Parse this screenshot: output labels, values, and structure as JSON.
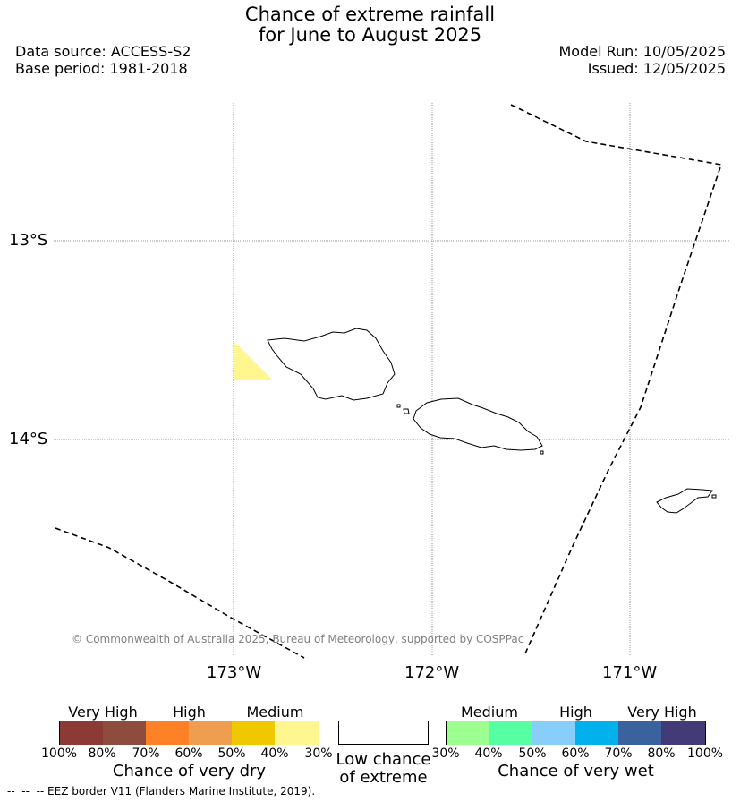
{
  "header": {
    "title_line1": "Chance of extreme rainfall",
    "title_line2": "for June to August 2025",
    "data_source": "Data source: ACCESS-S2",
    "base_period": "Base period: 1981-2018",
    "model_run": "Model Run: 10/05/2025",
    "issued": "Issued: 12/05/2025"
  },
  "map": {
    "lat_labels": [
      "13°S",
      "14°S"
    ],
    "lon_labels": [
      "173°W",
      "172°W",
      "171°W"
    ],
    "copyright": "© Commonwealth of Australia 2025, Bureau of Meteorology, supported by COSPPac",
    "overlay_color": "#fff68f",
    "eez_line_style": "dashed"
  },
  "legend": {
    "dry": {
      "groups": [
        "Very High",
        "High",
        "Medium"
      ],
      "colors": [
        "#8b3a35",
        "#8e4c3e",
        "#fe8126",
        "#ef9e4f",
        "#f0c800",
        "#fff68f"
      ],
      "ticks": [
        "100%",
        "80%",
        "70%",
        "60%",
        "50%",
        "40%",
        "30%"
      ],
      "caption": "Chance of very dry"
    },
    "low": {
      "caption_line1": "Low chance",
      "caption_line2": "of extreme",
      "color": "#ffffff"
    },
    "wet": {
      "groups": [
        "Medium",
        "High",
        "Very High"
      ],
      "colors": [
        "#9dff8f",
        "#55ffa2",
        "#87cefa",
        "#00b1ec",
        "#3a629f",
        "#433b78"
      ],
      "ticks": [
        "30%",
        "40%",
        "50%",
        "60%",
        "70%",
        "80%",
        "100%"
      ],
      "caption": "Chance of very wet"
    }
  },
  "footnote": "--  --  -- EEZ border V11 (Flanders Marine Institute, 2019)."
}
